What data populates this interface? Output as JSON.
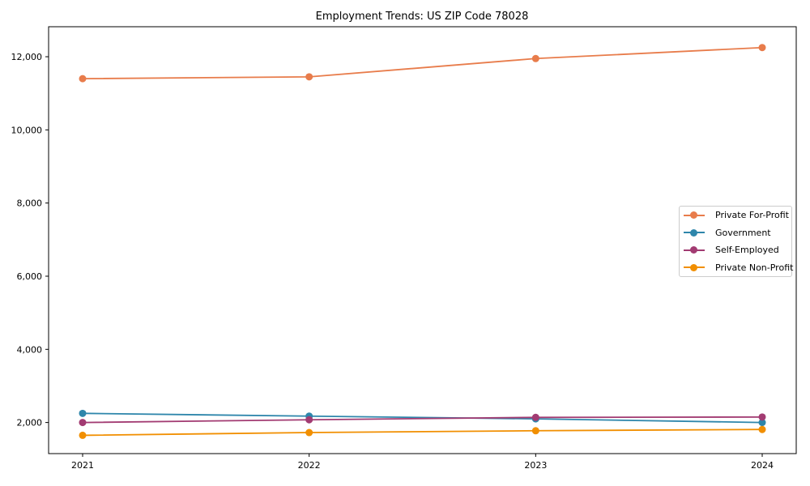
{
  "chart_data": {
    "type": "line",
    "title": "Employment Trends: US ZIP Code 78028",
    "categories": [
      "2021",
      "2022",
      "2023",
      "2024"
    ],
    "series": [
      {
        "name": "Private For-Profit",
        "color": "#E87C4B",
        "values": [
          11400,
          11450,
          11950,
          12250
        ]
      },
      {
        "name": "Government",
        "color": "#2E86AB",
        "values": [
          2250,
          2175,
          2100,
          2000
        ]
      },
      {
        "name": "Self-Employed",
        "color": "#A23B72",
        "values": [
          2000,
          2075,
          2140,
          2150
        ]
      },
      {
        "name": "Private Non-Profit",
        "color": "#F18F01",
        "values": [
          1650,
          1725,
          1775,
          1810
        ]
      }
    ],
    "xlabel": "",
    "ylabel": "",
    "ylim": [
      1150,
      12820
    ],
    "yticks": [
      2000,
      4000,
      6000,
      8000,
      10000,
      12000
    ],
    "ytick_labels": [
      "2,000",
      "4,000",
      "6,000",
      "8,000",
      "10,000",
      "12,000"
    ],
    "grid": false,
    "legend_position": "right-center",
    "axis_color": "#000000"
  }
}
